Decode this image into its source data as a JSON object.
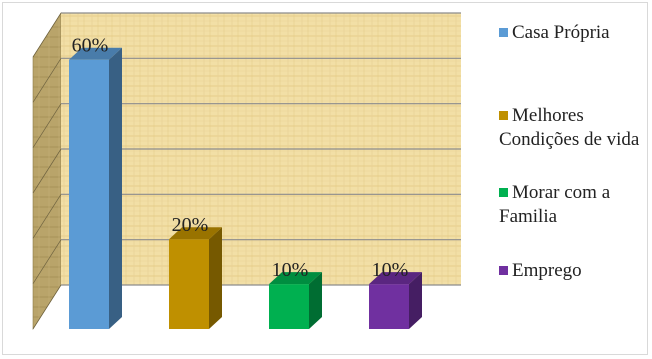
{
  "chart_data": {
    "type": "bar",
    "title": "",
    "xlabel": "",
    "ylabel": "",
    "ylim": [
      0,
      60
    ],
    "grid": true,
    "legend_position": "right",
    "categories": [
      "Casa Própria",
      "Melhores Condições de vida",
      "Morar com a Familia",
      "Emprego"
    ],
    "values": [
      60,
      20,
      10,
      10
    ],
    "data_labels": [
      "60%",
      "20%",
      "10%",
      "10%"
    ],
    "colors": [
      "#5b9bd5",
      "#bf9000",
      "#00b050",
      "#7030a0"
    ],
    "legend": [
      {
        "label": "Casa Própria",
        "color": "#5b9bd5"
      },
      {
        "label": "Melhores Condições de vida",
        "color": "#bf9000"
      },
      {
        "label": "Morar com a Familia",
        "color": "#00b050"
      },
      {
        "label": "Emprego",
        "color": "#7030a0"
      }
    ]
  }
}
